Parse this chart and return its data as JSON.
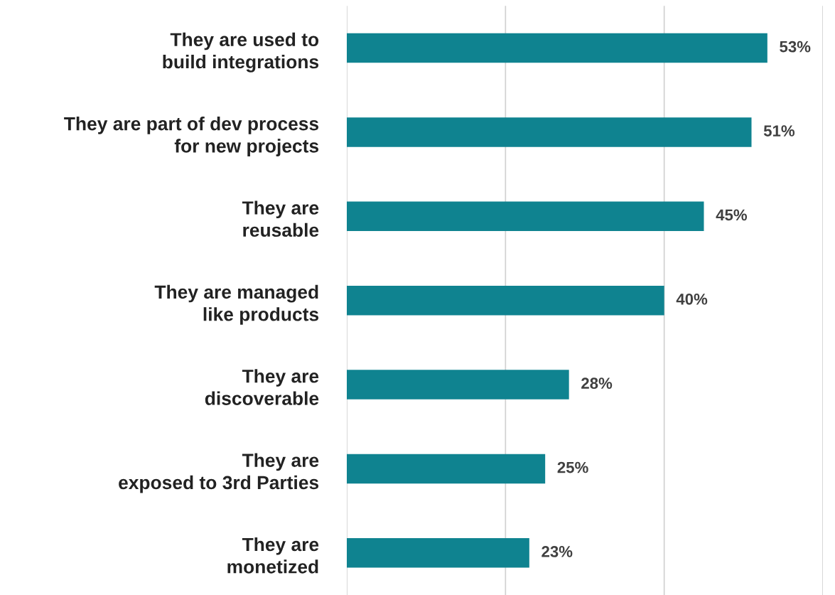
{
  "chart_data": {
    "type": "bar",
    "orientation": "horizontal",
    "categories": [
      "They are used to\nbuild integrations",
      "They are part of dev process\nfor new projects",
      "They are\nreusable",
      "They are managed\nlike products",
      "They are\ndiscoverable",
      "They are\nexposed to 3rd Parties",
      "They are\nmonetized"
    ],
    "values": [
      53,
      51,
      45,
      40,
      28,
      25,
      23
    ],
    "value_labels": [
      "53%",
      "51%",
      "45%",
      "40%",
      "28%",
      "25%",
      "23%"
    ],
    "color": "#0f8390",
    "xlim": [
      0,
      60
    ],
    "xticks": [
      {
        "value": 0,
        "label": null
      },
      {
        "value": 20,
        "label": null
      },
      {
        "value": 40,
        "label": null
      },
      {
        "value": 60,
        "label": null
      }
    ],
    "tick_labels": "y",
    "grid": "x"
  }
}
